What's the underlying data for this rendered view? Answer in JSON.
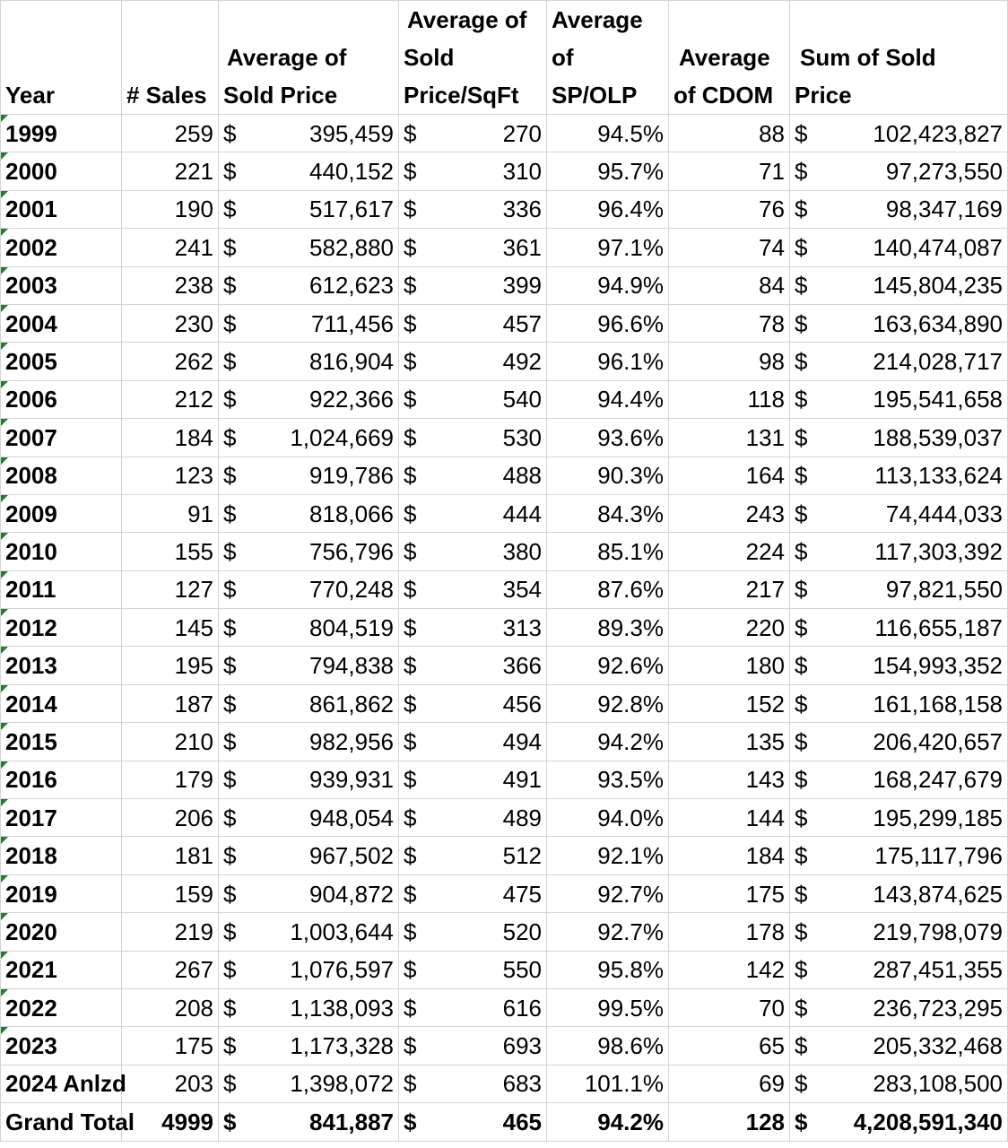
{
  "headers": {
    "year": "Year",
    "sales": "# Sales",
    "avg_price": [
      "Average of",
      "Sold Price"
    ],
    "avg_psf": [
      "Average of",
      "Sold",
      "Price/SqFt"
    ],
    "avg_spolp": [
      "Average",
      "of",
      "SP/OLP"
    ],
    "avg_cdom": [
      "Average",
      "of CDOM"
    ],
    "sum_price": [
      "Sum of Sold",
      "Price"
    ]
  },
  "currency_symbol": "$",
  "rows": [
    {
      "year": "1999",
      "sales": "259",
      "avg_price": "395,459",
      "avg_psf": "270",
      "spolp": "94.5%",
      "cdom": "88",
      "sum": "102,423,827",
      "flag": true
    },
    {
      "year": "2000",
      "sales": "221",
      "avg_price": "440,152",
      "avg_psf": "310",
      "spolp": "95.7%",
      "cdom": "71",
      "sum": "97,273,550",
      "flag": true
    },
    {
      "year": "2001",
      "sales": "190",
      "avg_price": "517,617",
      "avg_psf": "336",
      "spolp": "96.4%",
      "cdom": "76",
      "sum": "98,347,169",
      "flag": true
    },
    {
      "year": "2002",
      "sales": "241",
      "avg_price": "582,880",
      "avg_psf": "361",
      "spolp": "97.1%",
      "cdom": "74",
      "sum": "140,474,087",
      "flag": true
    },
    {
      "year": "2003",
      "sales": "238",
      "avg_price": "612,623",
      "avg_psf": "399",
      "spolp": "94.9%",
      "cdom": "84",
      "sum": "145,804,235",
      "flag": true
    },
    {
      "year": "2004",
      "sales": "230",
      "avg_price": "711,456",
      "avg_psf": "457",
      "spolp": "96.6%",
      "cdom": "78",
      "sum": "163,634,890",
      "flag": true
    },
    {
      "year": "2005",
      "sales": "262",
      "avg_price": "816,904",
      "avg_psf": "492",
      "spolp": "96.1%",
      "cdom": "98",
      "sum": "214,028,717",
      "flag": true
    },
    {
      "year": "2006",
      "sales": "212",
      "avg_price": "922,366",
      "avg_psf": "540",
      "spolp": "94.4%",
      "cdom": "118",
      "sum": "195,541,658",
      "flag": true
    },
    {
      "year": "2007",
      "sales": "184",
      "avg_price": "1,024,669",
      "avg_psf": "530",
      "spolp": "93.6%",
      "cdom": "131",
      "sum": "188,539,037",
      "flag": true
    },
    {
      "year": "2008",
      "sales": "123",
      "avg_price": "919,786",
      "avg_psf": "488",
      "spolp": "90.3%",
      "cdom": "164",
      "sum": "113,133,624",
      "flag": true
    },
    {
      "year": "2009",
      "sales": "91",
      "avg_price": "818,066",
      "avg_psf": "444",
      "spolp": "84.3%",
      "cdom": "243",
      "sum": "74,444,033",
      "flag": true
    },
    {
      "year": "2010",
      "sales": "155",
      "avg_price": "756,796",
      "avg_psf": "380",
      "spolp": "85.1%",
      "cdom": "224",
      "sum": "117,303,392",
      "flag": true
    },
    {
      "year": "2011",
      "sales": "127",
      "avg_price": "770,248",
      "avg_psf": "354",
      "spolp": "87.6%",
      "cdom": "217",
      "sum": "97,821,550",
      "flag": true
    },
    {
      "year": "2012",
      "sales": "145",
      "avg_price": "804,519",
      "avg_psf": "313",
      "spolp": "89.3%",
      "cdom": "220",
      "sum": "116,655,187",
      "flag": true
    },
    {
      "year": "2013",
      "sales": "195",
      "avg_price": "794,838",
      "avg_psf": "366",
      "spolp": "92.6%",
      "cdom": "180",
      "sum": "154,993,352",
      "flag": true
    },
    {
      "year": "2014",
      "sales": "187",
      "avg_price": "861,862",
      "avg_psf": "456",
      "spolp": "92.8%",
      "cdom": "152",
      "sum": "161,168,158",
      "flag": true
    },
    {
      "year": "2015",
      "sales": "210",
      "avg_price": "982,956",
      "avg_psf": "494",
      "spolp": "94.2%",
      "cdom": "135",
      "sum": "206,420,657",
      "flag": true
    },
    {
      "year": "2016",
      "sales": "179",
      "avg_price": "939,931",
      "avg_psf": "491",
      "spolp": "93.5%",
      "cdom": "143",
      "sum": "168,247,679",
      "flag": true
    },
    {
      "year": "2017",
      "sales": "206",
      "avg_price": "948,054",
      "avg_psf": "489",
      "spolp": "94.0%",
      "cdom": "144",
      "sum": "195,299,185",
      "flag": true
    },
    {
      "year": "2018",
      "sales": "181",
      "avg_price": "967,502",
      "avg_psf": "512",
      "spolp": "92.1%",
      "cdom": "184",
      "sum": "175,117,796",
      "flag": true
    },
    {
      "year": "2019",
      "sales": "159",
      "avg_price": "904,872",
      "avg_psf": "475",
      "spolp": "92.7%",
      "cdom": "175",
      "sum": "143,874,625",
      "flag": true
    },
    {
      "year": "2020",
      "sales": "219",
      "avg_price": "1,003,644",
      "avg_psf": "520",
      "spolp": "92.7%",
      "cdom": "178",
      "sum": "219,798,079",
      "flag": true
    },
    {
      "year": "2021",
      "sales": "267",
      "avg_price": "1,076,597",
      "avg_psf": "550",
      "spolp": "95.8%",
      "cdom": "142",
      "sum": "287,451,355",
      "flag": true
    },
    {
      "year": "2022",
      "sales": "208",
      "avg_price": "1,138,093",
      "avg_psf": "616",
      "spolp": "99.5%",
      "cdom": "70",
      "sum": "236,723,295",
      "flag": true
    },
    {
      "year": "2023",
      "sales": "175",
      "avg_price": "1,173,328",
      "avg_psf": "693",
      "spolp": "98.6%",
      "cdom": "65",
      "sum": "205,332,468",
      "flag": true
    },
    {
      "year": "2024 Anlzd",
      "sales": "203",
      "avg_price": "1,398,072",
      "avg_psf": "683",
      "spolp": "101.1%",
      "cdom": "69",
      "sum": "283,108,500",
      "flag": false
    }
  ],
  "total": {
    "year": "Grand Total",
    "sales": "4999",
    "avg_price": "841,887",
    "avg_psf": "465",
    "spolp": "94.2%",
    "cdom": "128",
    "sum": "4,208,591,340"
  },
  "colors": {
    "error_triangle": "#1e7f2e",
    "gridline": "#d4d4d4"
  }
}
